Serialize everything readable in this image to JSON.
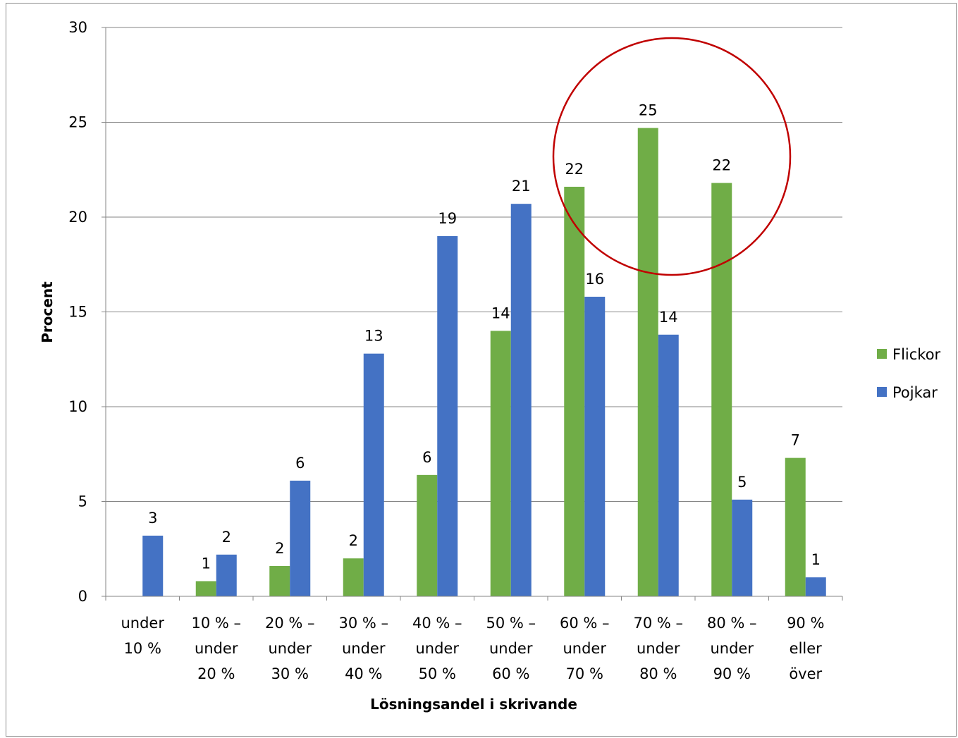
{
  "chart_data": {
    "type": "bar",
    "title": "",
    "xlabel": "Lösningsandel i skrivande",
    "ylabel": "Procent",
    "ylim": [
      0,
      30
    ],
    "yticks": [
      0,
      5,
      10,
      15,
      20,
      25,
      30
    ],
    "grid": true,
    "legend_position": "right",
    "categories": [
      [
        "under",
        "10 %"
      ],
      [
        "10 % –",
        "under",
        "20 %"
      ],
      [
        "20 % –",
        "under",
        "30 %"
      ],
      [
        "30 % –",
        "under",
        "40 %"
      ],
      [
        "40 % –",
        "under",
        "50 %"
      ],
      [
        "50 % –",
        "under",
        "60 %"
      ],
      [
        "60 % –",
        "under",
        "70 %"
      ],
      [
        "70 % –",
        "under",
        "80 %"
      ],
      [
        "80 % –",
        "under",
        "90 %"
      ],
      [
        "90 %",
        "eller",
        "över"
      ]
    ],
    "series": [
      {
        "name": "Flickor",
        "color": "#70ad47",
        "values": [
          null,
          0.8,
          1.6,
          2.0,
          6.4,
          14.0,
          21.6,
          24.7,
          21.8,
          7.3
        ],
        "labels": [
          "",
          "1",
          "2",
          "2",
          "6",
          "14",
          "22",
          "25",
          "22",
          "7"
        ]
      },
      {
        "name": "Pojkar",
        "color": "#4472c4",
        "values": [
          3.2,
          2.2,
          6.1,
          12.8,
          19.0,
          20.7,
          15.8,
          13.8,
          5.1,
          1.0
        ],
        "labels": [
          "3",
          "2",
          "6",
          "13",
          "19",
          "21",
          "16",
          "14",
          "5",
          "1"
        ]
      }
    ],
    "annotations": [
      {
        "type": "circle",
        "color": "#c00000",
        "around_categories": [
          "60 % – under 70 %",
          "70 % – under 80 %",
          "80 % – under 90 %"
        ],
        "series": "Flickor"
      }
    ]
  }
}
